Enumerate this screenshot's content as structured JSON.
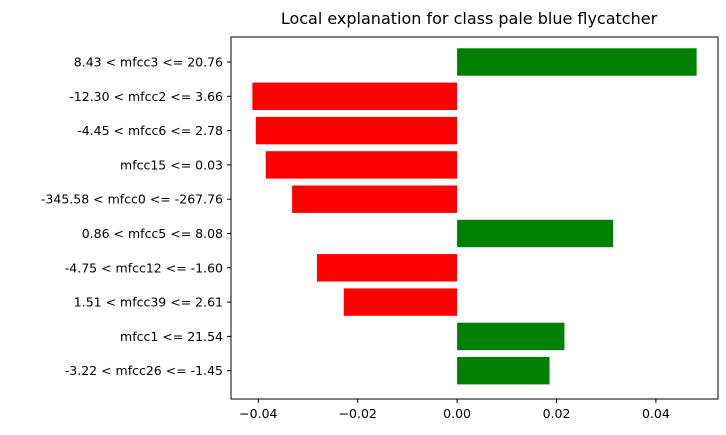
{
  "chart_data": {
    "type": "bar",
    "orientation": "horizontal",
    "title": "Local explanation for class pale blue flycatcher",
    "xlabel": "",
    "ylabel": "",
    "xlim": [
      -0.0455,
      0.0525
    ],
    "xticks": [
      -0.04,
      -0.02,
      0.0,
      0.02,
      0.04
    ],
    "xtick_labels": [
      "−0.04",
      "−0.02",
      "0.00",
      "0.02",
      "0.04"
    ],
    "grid": false,
    "positive_color": "#008000",
    "negative_color": "#ff0000",
    "categories": [
      "8.43 < mfcc3 <= 20.76",
      "-12.30 < mfcc2 <= 3.66",
      "-4.45 < mfcc6 <= 2.78",
      "mfcc15 <= 0.03",
      "-345.58 < mfcc0 <= -267.76",
      "0.86 < mfcc5 <= 8.08",
      "-4.75 < mfcc12 <= -1.60",
      "1.51 < mfcc39 <= 2.61",
      "mfcc1 <= 21.54",
      "-3.22 < mfcc26 <= -1.45"
    ],
    "values": [
      0.0482,
      -0.0412,
      -0.0405,
      -0.0385,
      -0.0332,
      0.0314,
      -0.0282,
      -0.0228,
      0.0216,
      0.0186
    ]
  }
}
